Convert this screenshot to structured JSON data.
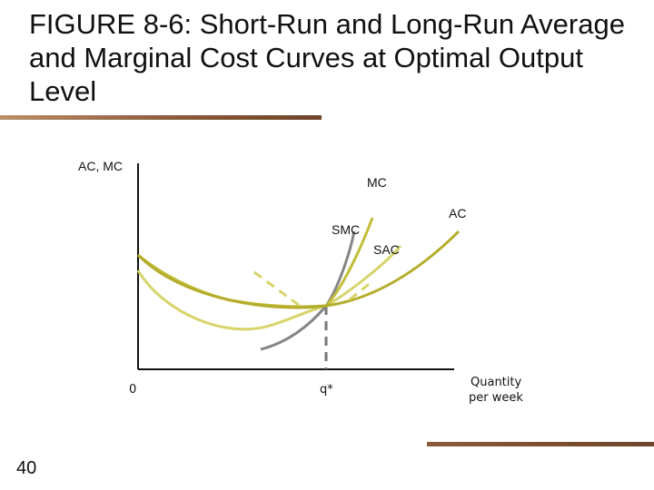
{
  "slide": {
    "title_lines": [
      "FIGURE 8-6: Short-Run and Long-Run Average",
      "and Marginal Cost Curves at Optimal Output",
      "Level"
    ],
    "slide_number": "40",
    "rule_color": "#8a5a3c"
  },
  "diagram": {
    "y_axis_label": "AC, MC",
    "x_axis_label_line1": "Quantity",
    "x_axis_label_line2": "per week",
    "origin_label": "0",
    "q_star_label": "q*",
    "curves": {
      "mc": {
        "label": "MC",
        "color": "#c2bd3a"
      },
      "ac": {
        "label": "AC",
        "color": "#b4ad2b"
      },
      "smc": {
        "label": "SMC",
        "color": "#858585"
      },
      "sac": {
        "label": "SAC",
        "color": "#d6d46a"
      }
    },
    "colors": {
      "axis": "#111111",
      "guide": "#777777"
    }
  }
}
